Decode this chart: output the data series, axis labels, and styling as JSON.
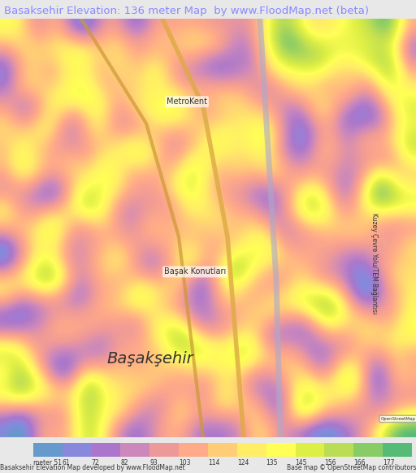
{
  "title": "Basaksehir Elevation: 136 meter Map  by www.FloodMap.net (beta)",
  "title_color": "#8888ff",
  "title_bg": "#e8e8e8",
  "colorbar_labels": [
    "meter 51",
    "61",
    "72",
    "82",
    "93",
    "103",
    "114",
    "124",
    "135",
    "145",
    "156",
    "166",
    "177"
  ],
  "colorbar_values": [
    51,
    61,
    72,
    82,
    93,
    103,
    114,
    124,
    135,
    145,
    156,
    166,
    177
  ],
  "colorbar_colors": [
    "#6699cc",
    "#8888dd",
    "#aa77cc",
    "#cc88bb",
    "#ee9999",
    "#ffaa88",
    "#ffcc77",
    "#ffee66",
    "#ffff55",
    "#ddee44",
    "#bbdd55",
    "#88cc66",
    "#55bb77"
  ],
  "bottom_left_text": "Basaksehir Elevation Map developed by www.FloodMap.net",
  "bottom_right_text": "Base map © OpenStreetMap contributors",
  "map_bg": "#e8e8e8",
  "fig_width": 5.12,
  "fig_height": 5.82,
  "dpi": 100
}
